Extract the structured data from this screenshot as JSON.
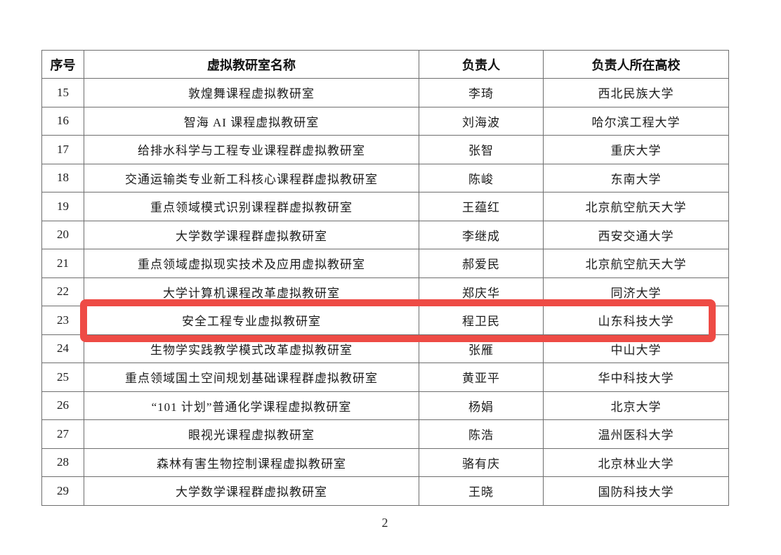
{
  "page": {
    "number": "2",
    "background": "#ffffff"
  },
  "highlight": {
    "color": "#ee4b45",
    "highlighted_row_no": "23"
  },
  "table": {
    "columns": [
      {
        "key": "no",
        "label": "序号"
      },
      {
        "key": "name",
        "label": "虚拟教研室名称"
      },
      {
        "key": "leader",
        "label": "负责人"
      },
      {
        "key": "university",
        "label": "负责人所在高校"
      }
    ],
    "rows": [
      {
        "no": "15",
        "name": "敦煌舞课程虚拟教研室",
        "leader": "李琦",
        "university": "西北民族大学",
        "highlighted": false
      },
      {
        "no": "16",
        "name": "智海 AI 课程虚拟教研室",
        "leader": "刘海波",
        "university": "哈尔滨工程大学",
        "highlighted": false
      },
      {
        "no": "17",
        "name": "给排水科学与工程专业课程群虚拟教研室",
        "leader": "张智",
        "university": "重庆大学",
        "highlighted": false
      },
      {
        "no": "18",
        "name": "交通运输类专业新工科核心课程群虚拟教研室",
        "leader": "陈峻",
        "university": "东南大学",
        "highlighted": false
      },
      {
        "no": "19",
        "name": "重点领域模式识别课程群虚拟教研室",
        "leader": "王蕴红",
        "university": "北京航空航天大学",
        "highlighted": false
      },
      {
        "no": "20",
        "name": "大学数学课程群虚拟教研室",
        "leader": "李继成",
        "university": "西安交通大学",
        "highlighted": false
      },
      {
        "no": "21",
        "name": "重点领域虚拟现实技术及应用虚拟教研室",
        "leader": "郝爱民",
        "university": "北京航空航天大学",
        "highlighted": false
      },
      {
        "no": "22",
        "name": "大学计算机课程改革虚拟教研室",
        "leader": "郑庆华",
        "university": "同济大学",
        "highlighted": false
      },
      {
        "no": "23",
        "name": "安全工程专业虚拟教研室",
        "leader": "程卫民",
        "university": "山东科技大学",
        "highlighted": true
      },
      {
        "no": "24",
        "name": "生物学实践教学模式改革虚拟教研室",
        "leader": "张雁",
        "university": "中山大学",
        "highlighted": false
      },
      {
        "no": "25",
        "name": "重点领域国土空间规划基础课程群虚拟教研室",
        "leader": "黄亚平",
        "university": "华中科技大学",
        "highlighted": false
      },
      {
        "no": "26",
        "name": "“101 计划”普通化学课程虚拟教研室",
        "leader": "杨娟",
        "university": "北京大学",
        "highlighted": false
      },
      {
        "no": "27",
        "name": "眼视光课程虚拟教研室",
        "leader": "陈浩",
        "university": "温州医科大学",
        "highlighted": false
      },
      {
        "no": "28",
        "name": "森林有害生物控制课程虚拟教研室",
        "leader": "骆有庆",
        "university": "北京林业大学",
        "highlighted": false
      },
      {
        "no": "29",
        "name": "大学数学课程群虚拟教研室",
        "leader": "王晓",
        "university": "国防科技大学",
        "highlighted": false
      }
    ]
  }
}
